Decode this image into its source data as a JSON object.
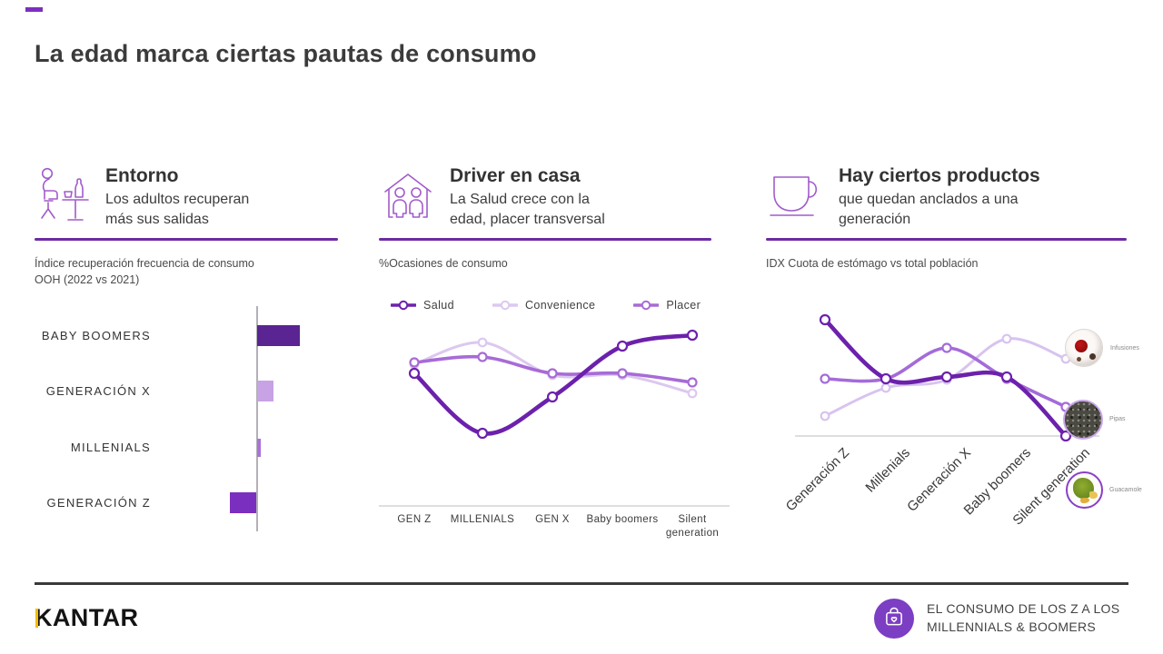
{
  "slide": {
    "title": "La edad marca ciertas pautas de consumo"
  },
  "theme": {
    "accent_purple": "#6C2BA2",
    "vivid_purple": "#7B2FBE",
    "icon_purple": "#A15CCB",
    "kantar_gold": "#EFBD00",
    "badge_purple": "#7C3EC3"
  },
  "sections": [
    {
      "icon": "person-at-table-icon",
      "title": "Entorno",
      "subtitle": "Los adultos recuperan\nmás sus salidas",
      "chart_label": "Índice recuperación frecuencia de consumo\nOOH (2022 vs 2021)"
    },
    {
      "icon": "house-family-icon",
      "title": "Driver en casa",
      "subtitle": "La Salud crece con la\nedad, placer transversal",
      "chart_label": "%Ocasiones de consumo"
    },
    {
      "icon": "mug-icon",
      "title": "Hay ciertos productos",
      "subtitle": "que quedan anclados a una\ngeneración",
      "chart_label": "IDX Cuota de estómago vs total población"
    }
  ],
  "chart_data": [
    {
      "type": "bar",
      "orientation": "horizontal-diverging",
      "title": "Índice recuperación frecuencia de consumo OOH (2022 vs 2021)",
      "categories": [
        "BABY BOOMERS",
        "GENERACIÓN X",
        "MILLENIALS",
        "GENERACIÓN Z"
      ],
      "values": [
        47,
        18,
        4,
        -29
      ],
      "colors": [
        "#5A2492",
        "#C7A3E6",
        "#A873D9",
        "#7B2FBE"
      ],
      "xlabel": "",
      "ylabel": "",
      "zero_line": true,
      "note": "values estimated from bar lengths; no numeric axis shown"
    },
    {
      "type": "line",
      "title": "%Ocasiones de consumo",
      "categories": [
        "GEN Z",
        "MILLENIALS",
        "GEN X",
        "Baby boomers",
        "Silent generation"
      ],
      "series": [
        {
          "name": "Convenience",
          "color": "#DCC8F0",
          "values": [
            78,
            90,
            72,
            72,
            62
          ]
        },
        {
          "name": "Placer",
          "color": "#A76BD6",
          "values": [
            79,
            82,
            73,
            73,
            68
          ]
        },
        {
          "name": "Salud",
          "color": "#6C21AC",
          "values": [
            73,
            40,
            60,
            88,
            94
          ]
        }
      ],
      "legend_order": [
        "Salud",
        "Convenience",
        "Placer"
      ],
      "legend_position": "top",
      "ylim": [
        0,
        100
      ],
      "grid": false,
      "note": "values estimated from curve heights; no numeric axis shown"
    },
    {
      "type": "line",
      "title": "IDX Cuota de estómago vs total población",
      "categories": [
        "Generación Z",
        "Millenials",
        "Generación X",
        "Baby boomers",
        "Silent generation"
      ],
      "series": [
        {
          "name": "Infusiones",
          "color": "#D8C3EF",
          "values": [
            16,
            39,
            46,
            79,
            63
          ]
        },
        {
          "name": "Pipas",
          "color": "#A46BD9",
          "values": [
            47,
            47,
            72,
            47,
            24
          ]
        },
        {
          "name": "Guacamole",
          "color": "#6C21AC",
          "values": [
            95,
            47,
            48,
            48,
            0
          ]
        }
      ],
      "annotations": [
        {
          "label": "Infusiones"
        },
        {
          "label": "Pipas"
        },
        {
          "label": "Guacamole"
        }
      ],
      "ylim": [
        0,
        100
      ],
      "grid": false,
      "note": "values estimated from curve heights; no numeric axis shown"
    }
  ],
  "footer": {
    "logo": "KANTAR",
    "badge_icon": "shopping-bag-heart-icon",
    "report_title_line1": "EL CONSUMO DE LOS Z A LOS",
    "report_title_line2": "MILLENNIALS & BOOMERS"
  }
}
